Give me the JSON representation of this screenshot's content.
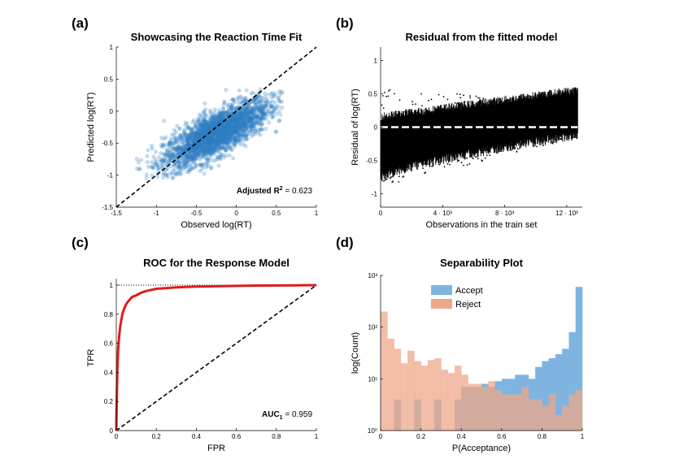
{
  "chart_data": [
    {
      "panel": "(a)",
      "type": "scatter",
      "title": "Showcasing the Reaction Time Fit",
      "xlabel": "Observed log(RT)",
      "ylabel": "Predicted log(RT)",
      "xlim": [
        -1.5,
        1
      ],
      "ylim": [
        -1.5,
        1
      ],
      "xticks": [
        "-1.5",
        "-1",
        "-0.5",
        "0",
        "0.5",
        "1"
      ],
      "yticks": [
        "-1.5",
        "-1",
        "-0.5",
        "0",
        "0.5",
        "1"
      ],
      "annotation": {
        "label": "Adjusted R",
        "sup": "2",
        "value": "= 0.623"
      },
      "reference_line": {
        "style": "dashed",
        "from": [
          -1.5,
          -1.5
        ],
        "to": [
          1,
          1
        ]
      },
      "point_cloud": {
        "description_trend": "dense elongated cloud",
        "center": [
          -0.25,
          -0.35
        ],
        "x_range": [
          -1.3,
          0.6
        ],
        "y_range": [
          -1.05,
          0.35
        ],
        "slope": 0.62
      },
      "color": "#2f7fc1",
      "grid": false
    },
    {
      "panel": "(b)",
      "type": "scatter",
      "title": "Residual from the fitted model",
      "xlabel": "Observations in the train set",
      "ylabel": "Residual of log(RT)",
      "xlim": [
        0,
        13000
      ],
      "ylim": [
        -1.2,
        1.2
      ],
      "xticks": [
        "0",
        "4 · 10³",
        "8 · 10³",
        "12 · 10³"
      ],
      "xtick_values": [
        0,
        4000,
        8000,
        12000
      ],
      "yticks": [
        "-1",
        "-0.5",
        "0",
        "0.5",
        "1"
      ],
      "ytick_values": [
        -1,
        -0.5,
        0,
        0.5,
        1
      ],
      "zero_line": {
        "style": "dashed",
        "color": "#ffffff"
      },
      "residuals": {
        "x_range": [
          0,
          12700
        ],
        "low_start": -0.7,
        "low_end": -0.05,
        "high_start": 0.1,
        "high_end": 0.5
      },
      "color": "#000000",
      "grid": false
    },
    {
      "panel": "(c)",
      "type": "line",
      "title": "ROC for the Response Model",
      "xlabel": "FPR",
      "ylabel": "TPR",
      "xlim": [
        0,
        1
      ],
      "ylim": [
        0,
        1
      ],
      "xticks": [
        "0",
        "0.2",
        "0.4",
        "0.6",
        "0.8",
        "1"
      ],
      "yticks": [
        "0",
        "0.2",
        "0.4",
        "0.6",
        "0.8",
        "1"
      ],
      "series": [
        {
          "x": [
            0,
            0.003,
            0.006,
            0.01,
            0.015,
            0.02,
            0.025,
            0.03,
            0.04,
            0.05,
            0.06,
            0.08,
            0.1,
            0.12,
            0.15,
            0.2,
            0.25,
            0.3,
            0.4,
            0.5,
            0.6,
            0.7,
            0.8,
            0.9,
            1.0
          ],
          "y": [
            0,
            0.25,
            0.45,
            0.58,
            0.66,
            0.72,
            0.76,
            0.8,
            0.84,
            0.87,
            0.89,
            0.92,
            0.93,
            0.945,
            0.96,
            0.975,
            0.98,
            0.985,
            0.99,
            0.992,
            0.995,
            0.997,
            0.998,
            0.999,
            1.0
          ],
          "color": "#e01b1b"
        }
      ],
      "diagonal": {
        "style": "dashed"
      },
      "top_line": {
        "style": "dotted",
        "y": 1
      },
      "annotation": {
        "label": "AUC",
        "sub": "1",
        "value": "= 0.959"
      },
      "grid": false
    },
    {
      "panel": "(d)",
      "type": "bar",
      "title": "Separability Plot",
      "xlabel": "P(Acceptance)",
      "ylabel": "log(Count)",
      "xlim": [
        0,
        1
      ],
      "ylim_log": [
        1,
        1000
      ],
      "xticks": [
        "0",
        "0.2",
        "0.4",
        "0.6",
        "0.8",
        "1"
      ],
      "yticks": [
        "10⁰",
        "10¹",
        "10²",
        "10³"
      ],
      "bin_count": 30,
      "legend": {
        "placement": "top-right"
      },
      "series": [
        {
          "name": "Accept",
          "color": "#7fb4e0",
          "values": [
            1,
            1,
            4,
            1,
            1,
            4,
            1,
            1,
            4,
            1,
            1,
            4,
            7,
            7,
            7,
            8,
            7,
            9,
            10,
            10,
            12,
            12,
            10,
            17,
            22,
            25,
            30,
            38,
            80,
            600
          ]
        },
        {
          "name": "Reject",
          "color": "#eda88a",
          "values": [
            200,
            60,
            38,
            20,
            35,
            22,
            18,
            23,
            25,
            15,
            13,
            18,
            12,
            8,
            8,
            7,
            9,
            6,
            5,
            5,
            5,
            7,
            4,
            4,
            3,
            5,
            2,
            3,
            5,
            6
          ]
        }
      ],
      "grid": false
    }
  ]
}
